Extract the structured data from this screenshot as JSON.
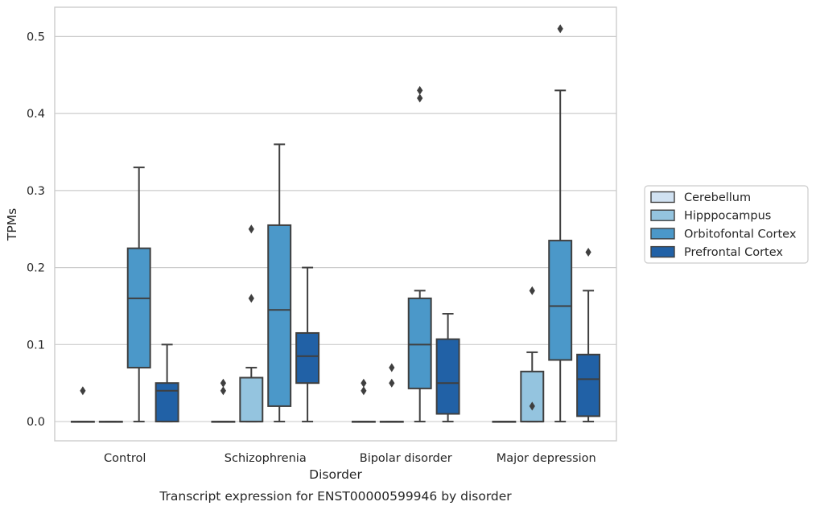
{
  "chart_data": {
    "type": "box",
    "caption": "Transcript expression for ENST00000599946 by disorder",
    "xlabel": "Disorder",
    "ylabel": "TPMs",
    "ylim": [
      -0.025,
      0.538
    ],
    "yticks": [
      "0.0",
      "0.1",
      "0.2",
      "0.3",
      "0.4",
      "0.5"
    ],
    "grid": true,
    "legend_position": "right",
    "categories": [
      "Control",
      "Schizophrenia",
      "Bipolar disorder",
      "Major depression"
    ],
    "series": [
      {
        "name": "Cerebellum",
        "color": "#d0e1f1",
        "boxes": [
          {
            "whislo": 0,
            "q1": 0,
            "med": 0,
            "q3": 0,
            "whishi": 0,
            "fliers": [
              0.04
            ]
          },
          {
            "whislo": 0,
            "q1": 0,
            "med": 0,
            "q3": 0,
            "whishi": 0,
            "fliers": [
              0.04,
              0.05
            ]
          },
          {
            "whislo": 0,
            "q1": 0,
            "med": 0,
            "q3": 0,
            "whishi": 0,
            "fliers": [
              0.04,
              0.05
            ]
          },
          {
            "whislo": 0,
            "q1": 0,
            "med": 0,
            "q3": 0,
            "whishi": 0,
            "fliers": []
          }
        ]
      },
      {
        "name": "Hipppocampus",
        "color": "#94c4df",
        "boxes": [
          {
            "whislo": 0,
            "q1": 0,
            "med": 0,
            "q3": 0,
            "whishi": 0,
            "fliers": []
          },
          {
            "whislo": 0,
            "q1": 0,
            "med": 0,
            "q3": 0.057,
            "whishi": 0.07,
            "fliers": [
              0.16,
              0.25
            ]
          },
          {
            "whislo": 0,
            "q1": 0,
            "med": 0,
            "q3": 0,
            "whishi": 0,
            "fliers": [
              0.05,
              0.07
            ]
          },
          {
            "whislo": 0,
            "q1": 0,
            "med": 0,
            "q3": 0.065,
            "whishi": 0.09,
            "fliers": [
              0.02,
              0.17
            ]
          }
        ]
      },
      {
        "name": "Orbitofontal Cortex",
        "color": "#4b98c9",
        "boxes": [
          {
            "whislo": 0,
            "q1": 0.07,
            "med": 0.16,
            "q3": 0.225,
            "whishi": 0.33,
            "fliers": []
          },
          {
            "whislo": 0,
            "q1": 0.02,
            "med": 0.145,
            "q3": 0.255,
            "whishi": 0.36,
            "fliers": []
          },
          {
            "whislo": 0,
            "q1": 0.043,
            "med": 0.1,
            "q3": 0.16,
            "whishi": 0.17,
            "fliers": [
              0.42,
              0.43
            ]
          },
          {
            "whislo": 0,
            "q1": 0.08,
            "med": 0.15,
            "q3": 0.235,
            "whishi": 0.43,
            "fliers": [
              0.51
            ]
          }
        ]
      },
      {
        "name": "Prefrontal Cortex",
        "color": "#2161a6",
        "boxes": [
          {
            "whislo": 0,
            "q1": 0,
            "med": 0.04,
            "q3": 0.05,
            "whishi": 0.1,
            "fliers": []
          },
          {
            "whislo": 0,
            "q1": 0.05,
            "med": 0.085,
            "q3": 0.115,
            "whishi": 0.2,
            "fliers": []
          },
          {
            "whislo": 0,
            "q1": 0.01,
            "med": 0.05,
            "q3": 0.107,
            "whishi": 0.14,
            "fliers": []
          },
          {
            "whislo": 0,
            "q1": 0.007,
            "med": 0.055,
            "q3": 0.087,
            "whishi": 0.17,
            "fliers": [
              0.22
            ]
          }
        ]
      }
    ]
  }
}
